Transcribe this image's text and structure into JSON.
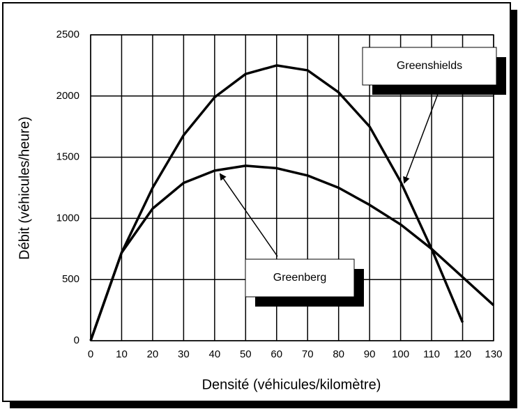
{
  "chart_data": {
    "type": "line",
    "xlabel": "Densité (véhicules/kilomètre)",
    "ylabel": "Débit (véhicules/heure)",
    "x": [
      0,
      10,
      20,
      30,
      40,
      50,
      60,
      70,
      80,
      90,
      100,
      110,
      120,
      130
    ],
    "series": [
      {
        "name": "Greenshields",
        "color": "#000000",
        "values": [
          0,
          720,
          1250,
          1680,
          1990,
          2180,
          2250,
          2210,
          2030,
          1750,
          1300,
          750,
          150,
          null
        ]
      },
      {
        "name": "Greenberg",
        "color": "#000000",
        "values": [
          0,
          720,
          1080,
          1290,
          1390,
          1430,
          1410,
          1350,
          1250,
          1110,
          950,
          750,
          520,
          290
        ]
      }
    ],
    "xlim": [
      0,
      130
    ],
    "xticks": [
      0,
      10,
      20,
      30,
      40,
      50,
      60,
      70,
      80,
      90,
      100,
      110,
      120,
      130
    ],
    "ylim": [
      0,
      2500
    ],
    "yticks": [
      0,
      500,
      1000,
      1500,
      2000,
      2500
    ],
    "grid": true
  }
}
